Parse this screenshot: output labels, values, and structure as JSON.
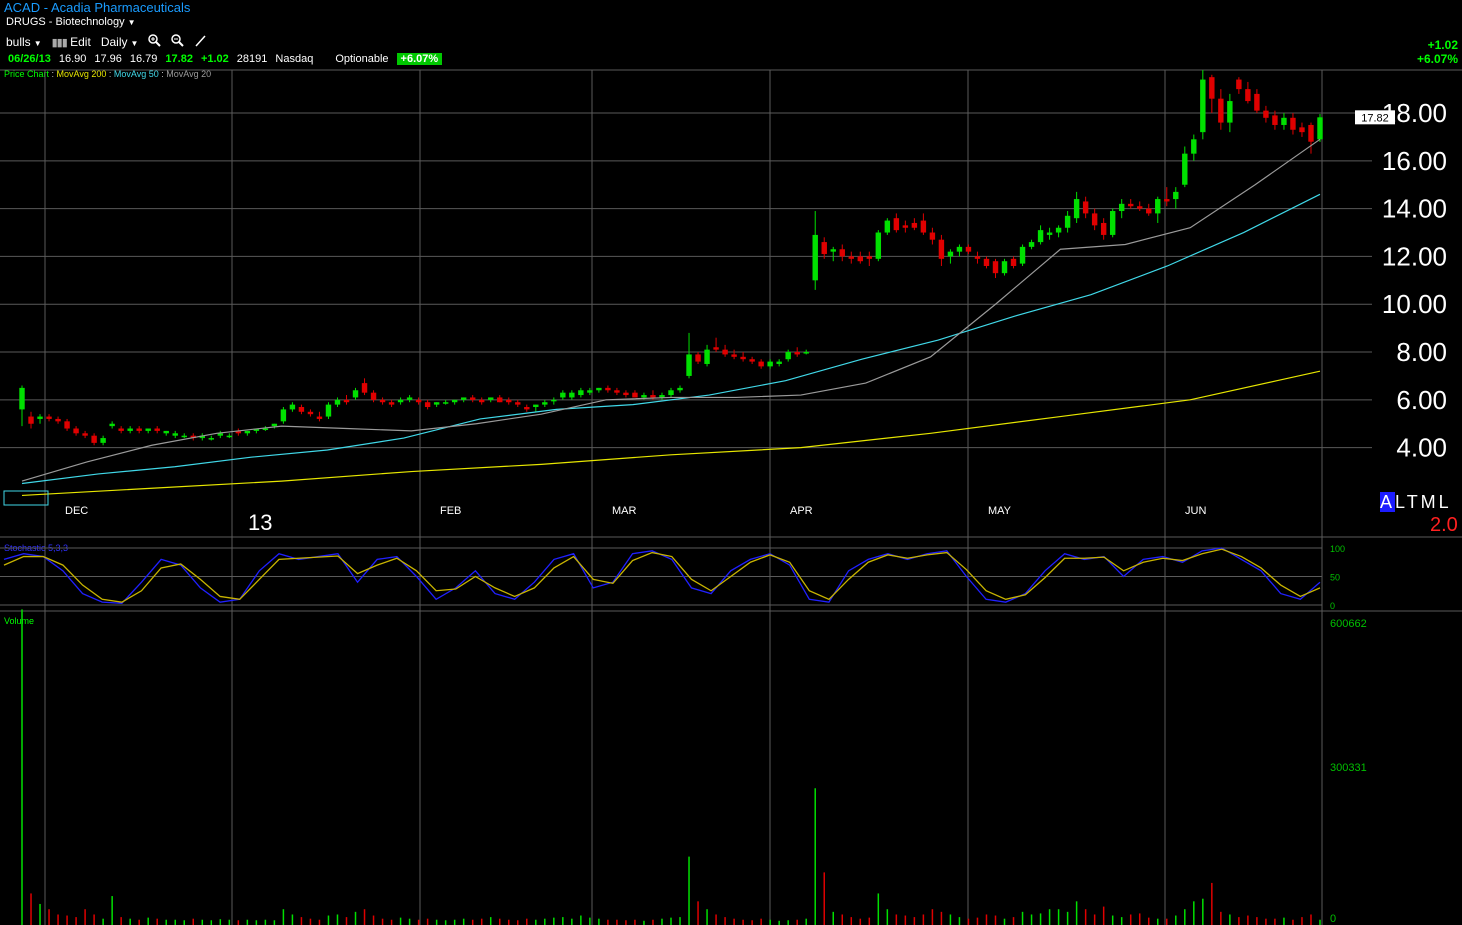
{
  "header": {
    "title": "ACAD - Acadia Pharmaceuticals",
    "sector": "DRUGS - Biotechnology",
    "list_name": "bulls",
    "edit_label": "Edit",
    "period_label": "Daily"
  },
  "quote": {
    "date": "06/26/13",
    "open": "16.90",
    "high": "17.96",
    "low": "16.79",
    "close": "17.82",
    "change": "+1.02",
    "volume": "28191",
    "exchange": "Nasdaq",
    "optionable": "Optionable",
    "pct_change": "+6.07%"
  },
  "change_top": {
    "change": "+1.02",
    "pct": "+6.07%"
  },
  "legend": {
    "price_chart": "Price Chart",
    "ma200": "MovAvg 200",
    "ma50": "MovAvg 50",
    "ma20": "MovAvg 20"
  },
  "colors": {
    "up": "#00e000",
    "down": "#e00000",
    "ma200": "#e6e600",
    "ma50": "#40d8e8",
    "ma20": "#9a9a9a",
    "grid": "#5a5a5a",
    "stoch_k": "#2020ff",
    "stoch_d": "#c8b400",
    "accent_blue": "#1a9cff"
  },
  "indicators": {
    "stochastic_label": "Stochastic 5,3,3",
    "volume_label": "Volume"
  },
  "al_block": {
    "text": "ALTML",
    "value": "2.0"
  },
  "chart_data": [
    {
      "type": "candlestick",
      "title": "ACAD - Acadia Pharmaceuticals",
      "y_axis_ticks": [
        "4.00",
        "6.00",
        "8.00",
        "10.00",
        "12.00",
        "14.00",
        "16.00",
        "18.00"
      ],
      "ylim": [
        1.6,
        19.8
      ],
      "last_price_label": "17.82",
      "x_labels": [
        "DEC",
        "13",
        "FEB",
        "MAR",
        "APR",
        "MAY",
        "JUN"
      ],
      "grid": true,
      "candles": [
        {
          "o": 5.6,
          "h": 6.6,
          "l": 4.9,
          "c": 6.5
        },
        {
          "o": 5.3,
          "h": 5.5,
          "l": 4.8,
          "c": 5.0
        },
        {
          "o": 5.2,
          "h": 5.4,
          "l": 5.0,
          "c": 5.3
        },
        {
          "o": 5.3,
          "h": 5.4,
          "l": 5.1,
          "c": 5.2
        },
        {
          "o": 5.2,
          "h": 5.3,
          "l": 5.0,
          "c": 5.1
        },
        {
          "o": 5.1,
          "h": 5.2,
          "l": 4.7,
          "c": 4.8
        },
        {
          "o": 4.8,
          "h": 4.9,
          "l": 4.5,
          "c": 4.6
        },
        {
          "o": 4.6,
          "h": 4.7,
          "l": 4.4,
          "c": 4.5
        },
        {
          "o": 4.5,
          "h": 4.6,
          "l": 4.1,
          "c": 4.2
        },
        {
          "o": 4.2,
          "h": 4.5,
          "l": 4.1,
          "c": 4.4
        },
        {
          "o": 4.9,
          "h": 5.1,
          "l": 4.8,
          "c": 5.0
        },
        {
          "o": 4.8,
          "h": 4.9,
          "l": 4.6,
          "c": 4.7
        },
        {
          "o": 4.7,
          "h": 4.9,
          "l": 4.6,
          "c": 4.8
        },
        {
          "o": 4.8,
          "h": 4.9,
          "l": 4.6,
          "c": 4.7
        },
        {
          "o": 4.7,
          "h": 4.8,
          "l": 4.6,
          "c": 4.8
        },
        {
          "o": 4.8,
          "h": 4.9,
          "l": 4.6,
          "c": 4.7
        },
        {
          "o": 4.6,
          "h": 4.7,
          "l": 4.5,
          "c": 4.7
        },
        {
          "o": 4.5,
          "h": 4.7,
          "l": 4.4,
          "c": 4.6
        },
        {
          "o": 4.5,
          "h": 4.6,
          "l": 4.4,
          "c": 4.5
        },
        {
          "o": 4.5,
          "h": 4.6,
          "l": 4.3,
          "c": 4.4
        },
        {
          "o": 4.4,
          "h": 4.6,
          "l": 4.3,
          "c": 4.5
        },
        {
          "o": 4.4,
          "h": 4.5,
          "l": 4.3,
          "c": 4.4
        },
        {
          "o": 4.5,
          "h": 4.7,
          "l": 4.4,
          "c": 4.6
        },
        {
          "o": 4.5,
          "h": 4.6,
          "l": 4.4,
          "c": 4.5
        },
        {
          "o": 4.7,
          "h": 4.8,
          "l": 4.5,
          "c": 4.6
        },
        {
          "o": 4.6,
          "h": 4.7,
          "l": 4.5,
          "c": 4.7
        },
        {
          "o": 4.7,
          "h": 4.8,
          "l": 4.6,
          "c": 4.8
        },
        {
          "o": 4.8,
          "h": 4.9,
          "l": 4.7,
          "c": 4.8
        },
        {
          "o": 4.9,
          "h": 5.0,
          "l": 4.8,
          "c": 5.0
        },
        {
          "o": 5.1,
          "h": 5.7,
          "l": 5.0,
          "c": 5.6
        },
        {
          "o": 5.6,
          "h": 5.9,
          "l": 5.5,
          "c": 5.8
        },
        {
          "o": 5.7,
          "h": 5.8,
          "l": 5.4,
          "c": 5.5
        },
        {
          "o": 5.5,
          "h": 5.6,
          "l": 5.3,
          "c": 5.4
        },
        {
          "o": 5.3,
          "h": 5.5,
          "l": 5.1,
          "c": 5.2
        },
        {
          "o": 5.3,
          "h": 5.9,
          "l": 5.2,
          "c": 5.8
        },
        {
          "o": 5.8,
          "h": 6.1,
          "l": 5.7,
          "c": 6.0
        },
        {
          "o": 6.0,
          "h": 6.2,
          "l": 5.8,
          "c": 5.9
        },
        {
          "o": 6.1,
          "h": 6.5,
          "l": 6.0,
          "c": 6.4
        },
        {
          "o": 6.7,
          "h": 6.9,
          "l": 6.2,
          "c": 6.3
        },
        {
          "o": 6.3,
          "h": 6.4,
          "l": 5.9,
          "c": 6.0
        },
        {
          "o": 6.0,
          "h": 6.1,
          "l": 5.8,
          "c": 5.9
        },
        {
          "o": 5.9,
          "h": 6.0,
          "l": 5.7,
          "c": 5.8
        },
        {
          "o": 5.9,
          "h": 6.1,
          "l": 5.8,
          "c": 6.0
        },
        {
          "o": 6.0,
          "h": 6.2,
          "l": 5.9,
          "c": 6.1
        },
        {
          "o": 6.0,
          "h": 6.1,
          "l": 5.8,
          "c": 5.9
        },
        {
          "o": 5.9,
          "h": 6.0,
          "l": 5.6,
          "c": 5.7
        },
        {
          "o": 5.8,
          "h": 5.9,
          "l": 5.7,
          "c": 5.9
        },
        {
          "o": 5.9,
          "h": 6.0,
          "l": 5.8,
          "c": 5.9
        },
        {
          "o": 5.9,
          "h": 6.0,
          "l": 5.8,
          "c": 6.0
        },
        {
          "o": 6.0,
          "h": 6.1,
          "l": 5.9,
          "c": 6.1
        },
        {
          "o": 6.1,
          "h": 6.2,
          "l": 5.9,
          "c": 6.0
        },
        {
          "o": 6.0,
          "h": 6.1,
          "l": 5.8,
          "c": 5.9
        },
        {
          "o": 6.0,
          "h": 6.1,
          "l": 5.9,
          "c": 6.1
        },
        {
          "o": 6.1,
          "h": 6.2,
          "l": 5.9,
          "c": 5.9
        },
        {
          "o": 6.0,
          "h": 6.1,
          "l": 5.8,
          "c": 5.9
        },
        {
          "o": 5.9,
          "h": 6.0,
          "l": 5.7,
          "c": 5.8
        },
        {
          "o": 5.7,
          "h": 5.8,
          "l": 5.5,
          "c": 5.6
        },
        {
          "o": 5.7,
          "h": 5.8,
          "l": 5.5,
          "c": 5.8
        },
        {
          "o": 5.8,
          "h": 6.0,
          "l": 5.7,
          "c": 5.9
        },
        {
          "o": 6.0,
          "h": 6.1,
          "l": 5.8,
          "c": 6.0
        },
        {
          "o": 6.1,
          "h": 6.4,
          "l": 6.0,
          "c": 6.3
        },
        {
          "o": 6.1,
          "h": 6.4,
          "l": 6.0,
          "c": 6.3
        },
        {
          "o": 6.2,
          "h": 6.5,
          "l": 6.1,
          "c": 6.4
        },
        {
          "o": 6.3,
          "h": 6.5,
          "l": 6.2,
          "c": 6.4
        },
        {
          "o": 6.4,
          "h": 6.5,
          "l": 6.3,
          "c": 6.5
        },
        {
          "o": 6.5,
          "h": 6.6,
          "l": 6.3,
          "c": 6.4
        },
        {
          "o": 6.4,
          "h": 6.5,
          "l": 6.2,
          "c": 6.3
        },
        {
          "o": 6.3,
          "h": 6.4,
          "l": 6.1,
          "c": 6.2
        },
        {
          "o": 6.3,
          "h": 6.4,
          "l": 6.1,
          "c": 6.1
        },
        {
          "o": 6.1,
          "h": 6.3,
          "l": 6.0,
          "c": 6.2
        },
        {
          "o": 6.2,
          "h": 6.4,
          "l": 6.0,
          "c": 6.1
        },
        {
          "o": 6.1,
          "h": 6.3,
          "l": 6.0,
          "c": 6.2
        },
        {
          "o": 6.2,
          "h": 6.5,
          "l": 6.1,
          "c": 6.4
        },
        {
          "o": 6.4,
          "h": 6.6,
          "l": 6.3,
          "c": 6.5
        },
        {
          "o": 7.0,
          "h": 8.8,
          "l": 6.9,
          "c": 7.9
        },
        {
          "o": 7.9,
          "h": 8.0,
          "l": 7.5,
          "c": 7.6
        },
        {
          "o": 7.5,
          "h": 8.3,
          "l": 7.4,
          "c": 8.1
        },
        {
          "o": 8.2,
          "h": 8.6,
          "l": 8.0,
          "c": 8.1
        },
        {
          "o": 8.1,
          "h": 8.3,
          "l": 7.8,
          "c": 7.9
        },
        {
          "o": 7.9,
          "h": 8.1,
          "l": 7.7,
          "c": 7.8
        },
        {
          "o": 7.8,
          "h": 8.0,
          "l": 7.6,
          "c": 7.7
        },
        {
          "o": 7.7,
          "h": 7.8,
          "l": 7.5,
          "c": 7.6
        },
        {
          "o": 7.6,
          "h": 7.7,
          "l": 7.3,
          "c": 7.4
        },
        {
          "o": 7.4,
          "h": 7.7,
          "l": 7.3,
          "c": 7.6
        },
        {
          "o": 7.5,
          "h": 7.7,
          "l": 7.4,
          "c": 7.6
        },
        {
          "o": 7.7,
          "h": 8.1,
          "l": 7.6,
          "c": 8.0
        },
        {
          "o": 8.0,
          "h": 8.2,
          "l": 7.8,
          "c": 7.9
        },
        {
          "o": 8.0,
          "h": 8.1,
          "l": 7.9,
          "c": 8.0
        },
        {
          "o": 11.0,
          "h": 13.9,
          "l": 10.6,
          "c": 12.9
        },
        {
          "o": 12.6,
          "h": 12.8,
          "l": 11.9,
          "c": 12.1
        },
        {
          "o": 12.2,
          "h": 12.4,
          "l": 11.8,
          "c": 12.3
        },
        {
          "o": 12.3,
          "h": 12.5,
          "l": 11.8,
          "c": 12.0
        },
        {
          "o": 12.0,
          "h": 12.2,
          "l": 11.7,
          "c": 11.9
        },
        {
          "o": 12.0,
          "h": 12.2,
          "l": 11.7,
          "c": 11.8
        },
        {
          "o": 12.0,
          "h": 12.2,
          "l": 11.6,
          "c": 11.9
        },
        {
          "o": 11.9,
          "h": 13.1,
          "l": 11.8,
          "c": 13.0
        },
        {
          "o": 13.0,
          "h": 13.6,
          "l": 12.9,
          "c": 13.5
        },
        {
          "o": 13.6,
          "h": 13.8,
          "l": 13.0,
          "c": 13.1
        },
        {
          "o": 13.3,
          "h": 13.5,
          "l": 13.0,
          "c": 13.2
        },
        {
          "o": 13.4,
          "h": 13.6,
          "l": 13.1,
          "c": 13.2
        },
        {
          "o": 13.5,
          "h": 13.8,
          "l": 12.9,
          "c": 13.0
        },
        {
          "o": 13.0,
          "h": 13.2,
          "l": 12.5,
          "c": 12.7
        },
        {
          "o": 12.7,
          "h": 12.9,
          "l": 11.6,
          "c": 11.9
        },
        {
          "o": 12.0,
          "h": 12.3,
          "l": 11.7,
          "c": 12.2
        },
        {
          "o": 12.2,
          "h": 12.5,
          "l": 12.0,
          "c": 12.4
        },
        {
          "o": 12.4,
          "h": 12.5,
          "l": 12.1,
          "c": 12.2
        },
        {
          "o": 12.0,
          "h": 12.2,
          "l": 11.7,
          "c": 11.9
        },
        {
          "o": 11.9,
          "h": 12.0,
          "l": 11.5,
          "c": 11.6
        },
        {
          "o": 11.8,
          "h": 11.9,
          "l": 11.1,
          "c": 11.3
        },
        {
          "o": 11.3,
          "h": 11.9,
          "l": 11.2,
          "c": 11.8
        },
        {
          "o": 11.9,
          "h": 12.0,
          "l": 11.5,
          "c": 11.6
        },
        {
          "o": 11.7,
          "h": 12.5,
          "l": 11.6,
          "c": 12.4
        },
        {
          "o": 12.4,
          "h": 12.7,
          "l": 12.3,
          "c": 12.6
        },
        {
          "o": 12.6,
          "h": 13.3,
          "l": 12.5,
          "c": 13.1
        },
        {
          "o": 12.9,
          "h": 13.2,
          "l": 12.7,
          "c": 13.0
        },
        {
          "o": 13.0,
          "h": 13.3,
          "l": 12.8,
          "c": 13.2
        },
        {
          "o": 13.2,
          "h": 13.9,
          "l": 13.0,
          "c": 13.7
        },
        {
          "o": 13.6,
          "h": 14.7,
          "l": 13.4,
          "c": 14.4
        },
        {
          "o": 14.3,
          "h": 14.5,
          "l": 13.6,
          "c": 13.8
        },
        {
          "o": 13.8,
          "h": 14.0,
          "l": 13.1,
          "c": 13.3
        },
        {
          "o": 13.4,
          "h": 13.6,
          "l": 12.7,
          "c": 12.9
        },
        {
          "o": 12.9,
          "h": 14.0,
          "l": 12.8,
          "c": 13.9
        },
        {
          "o": 13.9,
          "h": 14.4,
          "l": 13.6,
          "c": 14.2
        },
        {
          "o": 14.2,
          "h": 14.4,
          "l": 14.0,
          "c": 14.1
        },
        {
          "o": 14.1,
          "h": 14.3,
          "l": 13.9,
          "c": 14.0
        },
        {
          "o": 14.0,
          "h": 14.2,
          "l": 13.7,
          "c": 13.8
        },
        {
          "o": 13.8,
          "h": 14.5,
          "l": 13.4,
          "c": 14.4
        },
        {
          "o": 14.4,
          "h": 14.9,
          "l": 14.1,
          "c": 14.3
        },
        {
          "o": 14.4,
          "h": 14.9,
          "l": 14.0,
          "c": 14.7
        },
        {
          "o": 15.0,
          "h": 16.6,
          "l": 14.9,
          "c": 16.3
        },
        {
          "o": 16.3,
          "h": 17.1,
          "l": 16.0,
          "c": 16.9
        },
        {
          "o": 17.2,
          "h": 19.8,
          "l": 16.9,
          "c": 19.4
        },
        {
          "o": 19.5,
          "h": 19.6,
          "l": 18.0,
          "c": 18.6
        },
        {
          "o": 18.6,
          "h": 19.0,
          "l": 17.3,
          "c": 17.6
        },
        {
          "o": 17.6,
          "h": 18.8,
          "l": 17.2,
          "c": 18.5
        },
        {
          "o": 19.4,
          "h": 19.5,
          "l": 18.8,
          "c": 19.0
        },
        {
          "o": 19.0,
          "h": 19.3,
          "l": 18.4,
          "c": 18.5
        },
        {
          "o": 18.8,
          "h": 19.0,
          "l": 18.0,
          "c": 18.1
        },
        {
          "o": 18.1,
          "h": 18.3,
          "l": 17.6,
          "c": 17.8
        },
        {
          "o": 17.9,
          "h": 18.1,
          "l": 17.3,
          "c": 17.5
        },
        {
          "o": 17.5,
          "h": 18.0,
          "l": 17.3,
          "c": 17.8
        },
        {
          "o": 17.8,
          "h": 18.0,
          "l": 17.1,
          "c": 17.3
        },
        {
          "o": 17.4,
          "h": 17.6,
          "l": 17.0,
          "c": 17.2
        },
        {
          "o": 17.5,
          "h": 17.6,
          "l": 16.3,
          "c": 16.8
        },
        {
          "o": 16.9,
          "h": 17.96,
          "l": 16.79,
          "c": 17.82
        }
      ],
      "ma20": [
        2.6,
        3.4,
        4.1,
        4.6,
        4.9,
        4.8,
        4.7,
        5.0,
        5.4,
        6.0,
        6.1,
        6.1,
        6.2,
        6.7,
        7.8,
        10.0,
        12.3,
        12.5,
        13.2,
        15.0,
        16.9
      ],
      "ma50": [
        2.5,
        2.9,
        3.2,
        3.6,
        3.9,
        4.4,
        5.2,
        5.6,
        5.8,
        6.2,
        6.8,
        7.7,
        8.5,
        9.5,
        10.4,
        11.6,
        13.0,
        14.6
      ],
      "ma200": [
        2.0,
        2.3,
        2.6,
        3.0,
        3.3,
        3.7,
        4.0,
        4.6,
        5.3,
        6.0,
        7.2
      ]
    },
    {
      "type": "line",
      "title": "Stochastic 5,3,3",
      "y_axis_ticks": [
        "100",
        "50",
        "0"
      ],
      "ylim": [
        0,
        100
      ],
      "series": [
        {
          "values": [
            80,
            90,
            85,
            60,
            20,
            5,
            3,
            40,
            80,
            70,
            30,
            5,
            10,
            60,
            90,
            80,
            85,
            90,
            40,
            80,
            85,
            50,
            10,
            30,
            60,
            20,
            10,
            40,
            80,
            90,
            30,
            40,
            90,
            95,
            80,
            30,
            20,
            60,
            80,
            90,
            70,
            10,
            5,
            60,
            80,
            90,
            80,
            90,
            95,
            50,
            10,
            5,
            20,
            60,
            90,
            80,
            85,
            50,
            80,
            85,
            75,
            95,
            100,
            80,
            60,
            20,
            10,
            40
          ]
        },
        {
          "values": [
            70,
            85,
            85,
            70,
            35,
            10,
            5,
            25,
            65,
            72,
            45,
            15,
            10,
            45,
            80,
            82,
            84,
            86,
            55,
            70,
            82,
            60,
            25,
            28,
            50,
            30,
            15,
            30,
            65,
            85,
            45,
            38,
            78,
            92,
            85,
            45,
            25,
            50,
            75,
            88,
            75,
            25,
            10,
            45,
            75,
            88,
            82,
            88,
            92,
            62,
            25,
            10,
            18,
            48,
            82,
            82,
            84,
            60,
            75,
            82,
            78,
            90,
            98,
            85,
            65,
            35,
            15,
            30
          ]
        }
      ]
    },
    {
      "type": "bar",
      "title": "Volume",
      "y_axis_ticks": [
        "600662",
        "300331",
        "0"
      ],
      "ylim": [
        0,
        600662
      ]
    }
  ]
}
